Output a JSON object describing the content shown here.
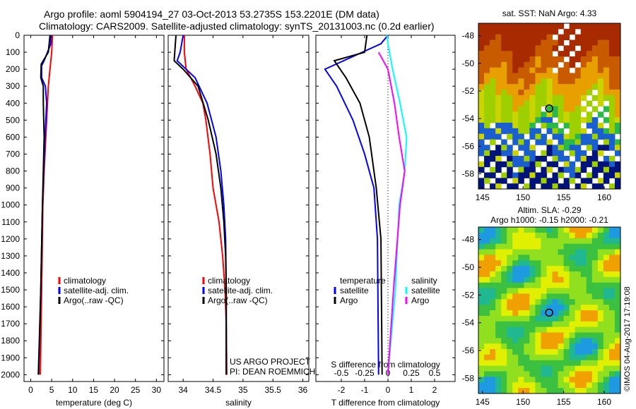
{
  "title_line1": "Argo profile: aoml 5904194_27 03-Oct-2013 53.2735S 153.2201E (DM data)",
  "title_line2": "Climatology: CARS2009. Satellite-adjusted climatology: synTS_20131003.nc (0.2d earlier)",
  "credit_top": "US ARGO PROJECT",
  "credit_bottom": "PI: DEAN ROEMMICH",
  "watermark": "©IMOS 04-Aug-2017 17:19:08",
  "colors": {
    "climatology": "#ff0000",
    "satellite": "#0000ff",
    "argo": "#000000",
    "sal_satellite": "#00ffff",
    "sal_argo": "#ff00ff"
  },
  "chart_data": [
    {
      "type": "line",
      "xlabel": "temperature (deg C)",
      "xlim": [
        -1.6,
        31.8
      ],
      "ylim": [
        0,
        2040
      ],
      "xticks": [
        0,
        5,
        10,
        15,
        20,
        25,
        30
      ],
      "yticks": [
        0,
        100,
        200,
        300,
        400,
        500,
        600,
        700,
        800,
        900,
        1000,
        1100,
        1200,
        1300,
        1400,
        1500,
        1600,
        1700,
        1800,
        1900,
        2000
      ],
      "legend": [
        "climatology",
        "satellite-adj. clim.",
        "Argo(..raw -QC)"
      ],
      "legend_placement": "bottom-center",
      "series": [
        {
          "name": "climatology",
          "color": "#ff0000",
          "depth": [
            0,
            100,
            200,
            300,
            400,
            600,
            800,
            1000,
            1500,
            2000
          ],
          "values": [
            5.2,
            5.0,
            4.6,
            4.2,
            4.0,
            3.6,
            3.2,
            2.9,
            2.6,
            2.3
          ]
        },
        {
          "name": "satellite-adj. clim.",
          "color": "#0000ff",
          "depth": [
            0,
            50,
            150,
            180,
            250,
            300,
            400,
            600,
            1000,
            1500,
            2000
          ],
          "values": [
            4.8,
            4.8,
            3.2,
            2.6,
            2.6,
            3.5,
            3.8,
            3.4,
            2.8,
            2.4,
            1.8
          ]
        },
        {
          "name": "Argo(..raw -QC)",
          "color": "#000000",
          "depth": [
            0,
            100,
            170,
            250,
            300,
            400,
            600,
            1000,
            1500,
            2000
          ],
          "values": [
            4.6,
            4.2,
            2.5,
            2.4,
            3.0,
            3.0,
            3.2,
            2.8,
            2.4,
            1.9
          ]
        }
      ]
    },
    {
      "type": "line",
      "xlabel": "salinity",
      "xlim": [
        33.75,
        36.1
      ],
      "ylim": [
        0,
        2040
      ],
      "xticks": [
        34,
        34.5,
        35,
        35.5,
        36
      ],
      "legend": [
        "climatology",
        "satellite-adj. clim.",
        "Argo(..raw -QC)"
      ],
      "legend_placement": "bottom-center",
      "series": [
        {
          "name": "climatology",
          "color": "#ff0000",
          "depth": [
            0,
            100,
            200,
            300,
            400,
            500,
            700,
            900,
            1100,
            1300,
            1500,
            1700,
            2000
          ],
          "values": [
            34.02,
            34.02,
            34.05,
            34.2,
            34.33,
            34.38,
            34.45,
            34.5,
            34.6,
            34.66,
            34.7,
            34.72,
            34.73
          ]
        },
        {
          "name": "satellite-adj. clim.",
          "color": "#0000ff",
          "depth": [
            0,
            100,
            150,
            250,
            400,
            600,
            800,
            1000,
            1200,
            1500,
            2000
          ],
          "values": [
            34.0,
            33.95,
            33.9,
            34.2,
            34.4,
            34.55,
            34.63,
            34.68,
            34.71,
            34.72,
            34.72
          ]
        },
        {
          "name": "Argo(..raw -QC)",
          "color": "#000000",
          "depth": [
            0,
            150,
            200,
            300,
            500,
            700,
            900,
            1100,
            1300,
            1500,
            2000
          ],
          "values": [
            33.88,
            33.85,
            34.0,
            34.25,
            34.42,
            34.55,
            34.63,
            34.68,
            34.71,
            34.72,
            34.72
          ]
        }
      ]
    },
    {
      "type": "line",
      "xlabel": "T difference from climatology",
      "x2label": "S difference from climatology",
      "xlim": [
        -3.09,
        2.88
      ],
      "ylim": [
        0,
        2040
      ],
      "xticks": [
        -2,
        -1,
        0,
        1,
        2
      ],
      "x2ticks": [
        "-0.5",
        "-0.25",
        "0",
        "0.25",
        "0.5"
      ],
      "legend_temperature": {
        "title": "temperature",
        "items": [
          "satellite",
          "Argo"
        ]
      },
      "legend_salinity": {
        "title": "salinity",
        "items": [
          "satellite",
          "Argo"
        ]
      },
      "series": [
        {
          "name": "T satellite",
          "color": "#0000ff",
          "depth": [
            0,
            50,
            200,
            300,
            500,
            700,
            900,
            1200,
            2000
          ],
          "values": [
            0,
            -0.3,
            -2.7,
            -2.2,
            -1.5,
            -1.0,
            -0.6,
            -0.45,
            -0.4
          ]
        },
        {
          "name": "T Argo",
          "color": "#000000",
          "depth": [
            0,
            100,
            150,
            250,
            400,
            600,
            900,
            1200,
            2000
          ],
          "values": [
            -0.9,
            -1.0,
            -2.3,
            -1.8,
            -1.2,
            -0.8,
            -0.5,
            -0.3,
            -0.25
          ]
        },
        {
          "name": "S satellite",
          "color": "#00ffff",
          "depth": [
            0,
            50,
            200,
            400,
            600,
            800,
            1000,
            1500,
            2000
          ],
          "values": [
            -0.01,
            0.0,
            0.05,
            0.13,
            0.2,
            0.18,
            0.12,
            0.08,
            0.0
          ]
        },
        {
          "name": "S Argo",
          "color": "#ff00ff",
          "depth": [
            100,
            200,
            400,
            600,
            800,
            1000,
            1500,
            2000
          ],
          "values": [
            -0.1,
            0.0,
            0.07,
            0.12,
            0.18,
            0.13,
            0.06,
            0.0
          ]
        }
      ]
    },
    {
      "type": "heatmap",
      "title": "sat. SST: NaN Argo: 4.33",
      "xlim": [
        144.5,
        162
      ],
      "ylim": [
        -59.1,
        -47.1
      ],
      "xticks": [
        145,
        150,
        155,
        160
      ],
      "yticks": [
        -48,
        -50,
        -52,
        -54,
        -56,
        -58
      ],
      "marker": {
        "lon": 153.22,
        "lat": -53.27
      }
    },
    {
      "type": "heatmap",
      "title": "Altim. SLA: -0.29",
      "subtitle": "Argo h1000: -0.15 h2000: -0.21",
      "xlim": [
        144.5,
        162
      ],
      "ylim": [
        -59.1,
        -47.1
      ],
      "xticks": [
        145,
        150,
        155,
        160
      ],
      "yticks": [
        -48,
        -50,
        -52,
        -54,
        -56,
        -58
      ],
      "marker": {
        "lon": 153.22,
        "lat": -53.27
      }
    }
  ]
}
